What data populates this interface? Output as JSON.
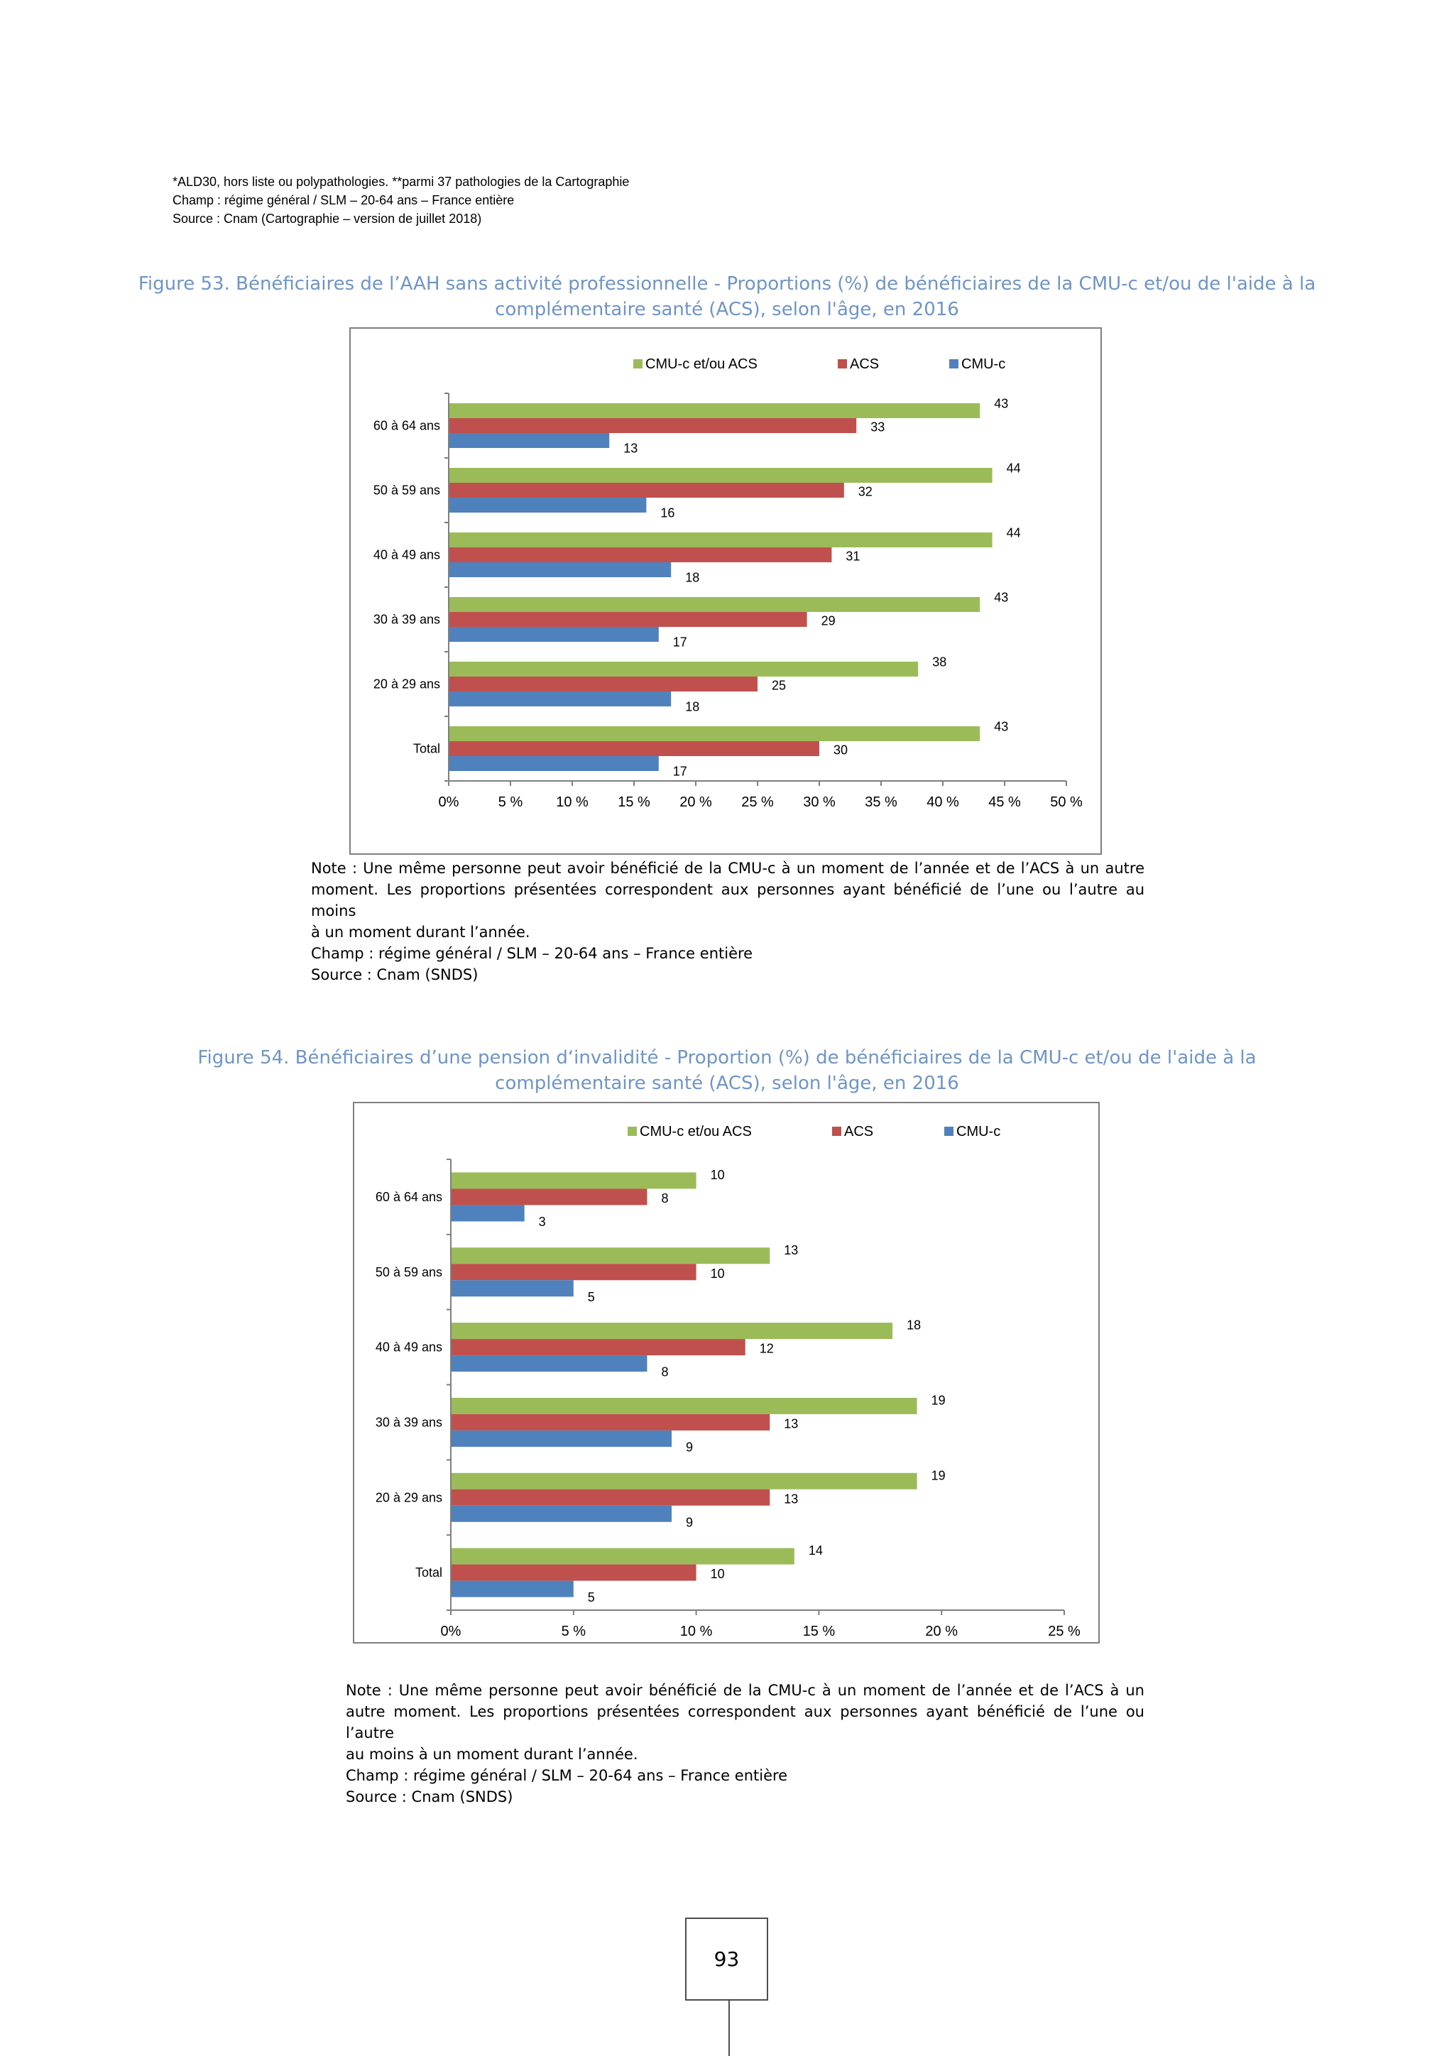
{
  "header_notes": [
    "*ALD30, hors liste ou polypathologies. **parmi 37 pathologies de la Cartographie",
    "Champ : régime général / SLM – 20-64 ans – France entière",
    "Source : Cnam (Cartographie – version de juillet 2018)"
  ],
  "colors": {
    "green": "#9bbb59",
    "red": "#c0504d",
    "blue": "#4f81bd",
    "title": "#6f94c6"
  },
  "fig53": {
    "title_line1": "Figure 53. Bénéficiaires de l’AAH sans activité professionnelle - Proportions (%) de bénéficiaires de la CMU-c et/ou de l'aide à la",
    "title_line2": "complémentaire santé (ACS), selon l'âge, en 2016",
    "note_line1": "Note : Une même personne peut avoir bénéficié de la CMU-c à un moment de l’année et de l’ACS à un autre",
    "note_line2": "moment. Les proportions présentées correspondent aux personnes ayant bénéficié de l’une ou l’autre au moins",
    "note_line3": "à un moment durant l’année.",
    "champ": "Champ : régime général / SLM – 20-64 ans – France entière",
    "source": "Source : Cnam (SNDS)"
  },
  "fig54": {
    "title_line1": "Figure 54. Bénéficiaires d’une pension d‘invalidité - Proportion (%) de bénéficiaires de la CMU-c et/ou de l'aide à la",
    "title_line2": "complémentaire santé (ACS), selon l'âge, en 2016",
    "note_line1": "Note : Une même personne peut avoir bénéficié de la CMU-c à un moment de l’année et de l’ACS à un",
    "note_line2": "autre moment. Les proportions présentées correspondent aux personnes ayant bénéficié de l’une ou l’autre",
    "note_line3": "au moins à un moment durant l’année.",
    "champ": "Champ : régime général / SLM – 20-64 ans – France entière",
    "source": "Source : Cnam (SNDS)"
  },
  "page_number": "93",
  "chart_data": [
    {
      "type": "bar",
      "orientation": "horizontal",
      "categories": [
        "60 à 64 ans",
        "50 à 59 ans",
        "40 à 49 ans",
        "30 à 39 ans",
        "20 à 29 ans",
        "Total"
      ],
      "series": [
        {
          "name": "CMU-c et/ou ACS",
          "color": "#9bbb59",
          "values": [
            43,
            44,
            44,
            43,
            38,
            43
          ]
        },
        {
          "name": "ACS",
          "color": "#c0504d",
          "values": [
            33,
            32,
            31,
            29,
            25,
            30
          ]
        },
        {
          "name": "CMU-c",
          "color": "#4f81bd",
          "values": [
            13,
            16,
            18,
            17,
            18,
            17
          ]
        }
      ],
      "xlim": [
        0,
        50
      ],
      "xticks": [
        0,
        5,
        10,
        15,
        20,
        25,
        30,
        35,
        40,
        45,
        50
      ],
      "xtick_labels": [
        "0%",
        "5 %",
        "10 %",
        "15 %",
        "20 %",
        "25 %",
        "30 %",
        "35 %",
        "40 %",
        "45 %",
        "50 %"
      ],
      "legend_position": "top",
      "grid": false
    },
    {
      "type": "bar",
      "orientation": "horizontal",
      "categories": [
        "60 à 64 ans",
        "50 à 59 ans",
        "40 à 49 ans",
        "30 à 39 ans",
        "20 à 29 ans",
        "Total"
      ],
      "series": [
        {
          "name": "CMU-c et/ou ACS",
          "color": "#9bbb59",
          "values": [
            10,
            13,
            18,
            19,
            19,
            14
          ]
        },
        {
          "name": "ACS",
          "color": "#c0504d",
          "values": [
            8,
            10,
            12,
            13,
            13,
            10
          ]
        },
        {
          "name": "CMU-c",
          "color": "#4f81bd",
          "values": [
            3,
            5,
            8,
            9,
            9,
            5
          ]
        }
      ],
      "xlim": [
        0,
        25
      ],
      "xticks": [
        0,
        5,
        10,
        15,
        20,
        25
      ],
      "xtick_labels": [
        "0%",
        "5 %",
        "10 %",
        "15 %",
        "20 %",
        "25 %"
      ],
      "legend_position": "top",
      "grid": false
    }
  ]
}
